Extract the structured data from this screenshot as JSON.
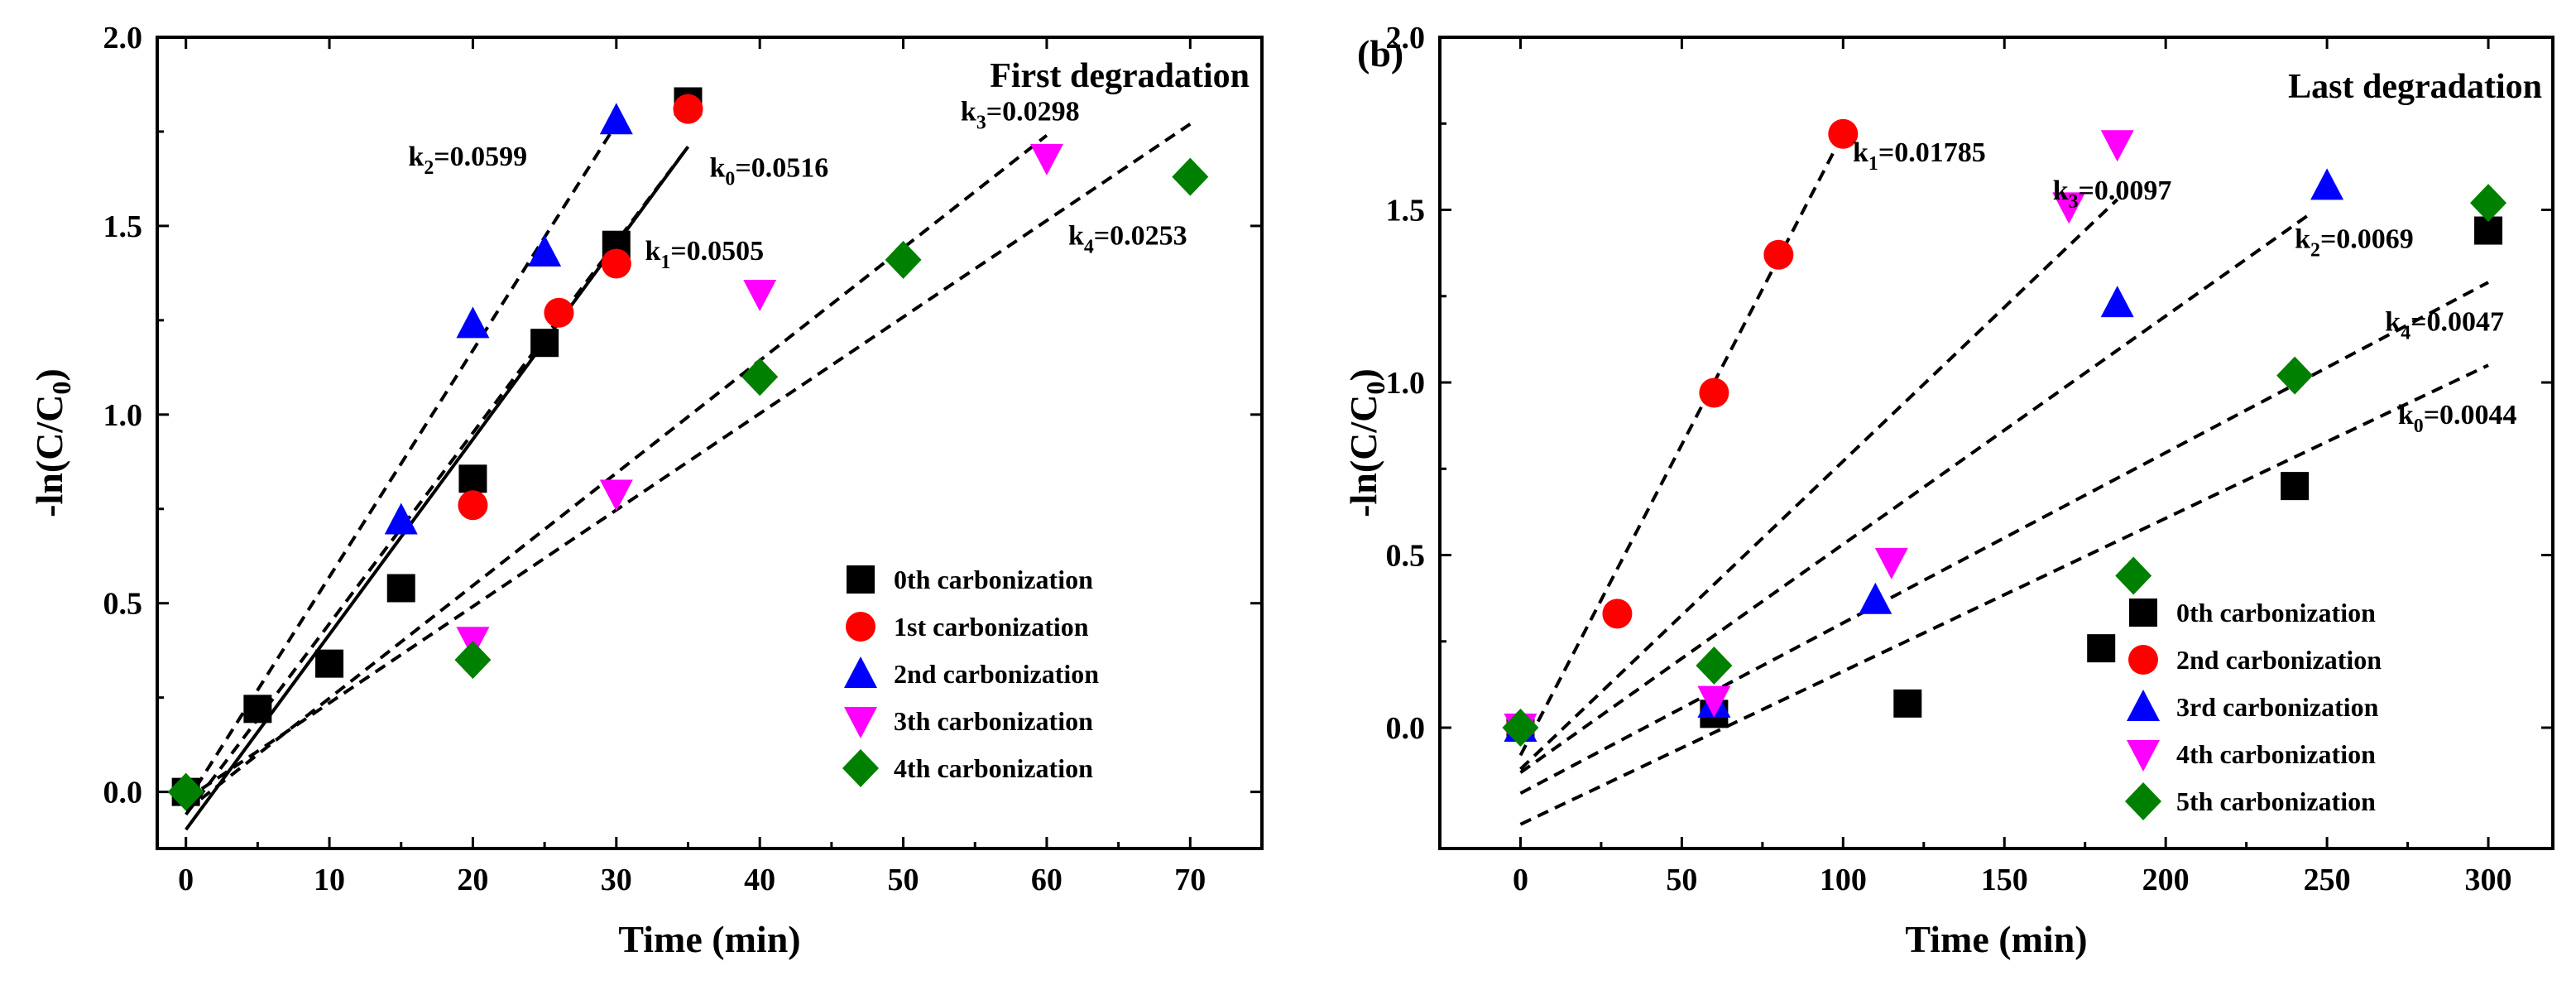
{
  "chart_data": [
    {
      "type": "scatter",
      "panel_label": "",
      "title": "First degradation",
      "xlabel": "Time (min)",
      "ylabel": "-ln(C/C0)",
      "ylabel_main": "-ln(C/C",
      "ylabel_sub": "0",
      "ylabel_tail": ")",
      "xlim": [
        -2,
        75
      ],
      "ylim": [
        -0.15,
        2.0
      ],
      "xticks": [
        0,
        10,
        20,
        30,
        40,
        50,
        60,
        70
      ],
      "xtick_labels": [
        "0",
        "10",
        "20",
        "30",
        "40",
        "50",
        "60",
        "70"
      ],
      "yticks": [
        0.0,
        0.5,
        1.0,
        1.5,
        2.0
      ],
      "ytick_labels": [
        "0.0",
        "0.5",
        "1.0",
        "1.5",
        "2.0"
      ],
      "legend_position": "bottom-right",
      "series": [
        {
          "name": "0th carbonization",
          "marker": "square",
          "color": "#000000",
          "x": [
            0,
            5,
            10,
            15,
            20,
            25,
            30,
            35
          ],
          "y": [
            0.0,
            0.22,
            0.34,
            0.54,
            0.83,
            1.19,
            1.45,
            1.83
          ]
        },
        {
          "name": "1st carbonization",
          "marker": "circle",
          "color": "#ff0000",
          "x": [
            20,
            26,
            30,
            35
          ],
          "y": [
            0.76,
            1.27,
            1.4,
            1.81
          ]
        },
        {
          "name": "2nd carbonization",
          "marker": "triangle-up",
          "color": "#0000ff",
          "x": [
            15,
            20,
            25,
            30
          ],
          "y": [
            0.72,
            1.24,
            1.43,
            1.78
          ]
        },
        {
          "name": "3th carbonization",
          "marker": "triangle-down",
          "color": "#ff00ff",
          "x": [
            20,
            30,
            40,
            60
          ],
          "y": [
            0.4,
            0.79,
            1.32,
            1.68
          ]
        },
        {
          "name": "4th carbonization",
          "marker": "diamond",
          "color": "#008000",
          "x": [
            0,
            20,
            40,
            50,
            70
          ],
          "y": [
            0.0,
            0.35,
            1.1,
            1.41,
            1.63
          ]
        }
      ],
      "fit_lines": [
        {
          "style": "dashed",
          "x": [
            0,
            30
          ],
          "y": [
            -0.03,
            1.77
          ]
        },
        {
          "style": "solid",
          "x": [
            0,
            35
          ],
          "y": [
            -0.1,
            1.71
          ]
        },
        {
          "style": "dashed",
          "x": [
            0,
            35
          ],
          "y": [
            -0.06,
            1.71
          ]
        },
        {
          "style": "dashed",
          "x": [
            0,
            60
          ],
          "y": [
            -0.05,
            1.74
          ]
        },
        {
          "style": "dashed",
          "x": [
            0,
            70
          ],
          "y": [
            -0.02,
            1.77
          ]
        }
      ],
      "rate_labels": [
        {
          "k": "k",
          "sub": "2",
          "val": "=0.0599",
          "x": 15.5,
          "y": 1.66
        },
        {
          "k": "k",
          "sub": "0",
          "val": "=0.0516",
          "x": 36.5,
          "y": 1.63
        },
        {
          "k": "k",
          "sub": "1",
          "val": "=0.0505",
          "x": 32,
          "y": 1.41
        },
        {
          "k": "k",
          "sub": "3",
          "val": "=0.0298",
          "x": 54,
          "y": 1.78
        },
        {
          "k": "k",
          "sub": "4",
          "val": "=0.0253",
          "x": 61.5,
          "y": 1.45
        }
      ]
    },
    {
      "type": "scatter",
      "panel_label": "(b)",
      "title": "Last degradation",
      "xlabel": "Time (min)",
      "ylabel": "-ln(C/C0)",
      "ylabel_main": "-ln(C/C",
      "ylabel_sub": "0",
      "ylabel_tail": ")",
      "xlim": [
        -25,
        320
      ],
      "ylim": [
        -0.35,
        2.0
      ],
      "xticks": [
        0,
        50,
        100,
        150,
        200,
        250,
        300
      ],
      "xtick_labels": [
        "0",
        "50",
        "100",
        "150",
        "200",
        "250",
        "300"
      ],
      "yticks": [
        0.0,
        0.5,
        1.0,
        1.5,
        2.0
      ],
      "ytick_labels": [
        "0.0",
        "0.5",
        "1.0",
        "1.5",
        "2.0"
      ],
      "legend_position": "bottom-right",
      "series": [
        {
          "name": "0th carbonization",
          "marker": "square",
          "color": "#000000",
          "x": [
            0,
            60,
            120,
            180,
            240,
            300
          ],
          "y": [
            0.0,
            0.04,
            0.07,
            0.23,
            0.7,
            1.44
          ]
        },
        {
          "name": "2nd carbonization",
          "marker": "circle",
          "color": "#ff0000",
          "x": [
            0,
            30,
            60,
            80,
            100
          ],
          "y": [
            0.0,
            0.33,
            0.97,
            1.37,
            1.72
          ]
        },
        {
          "name": "3rd carbonization",
          "marker": "triangle-up",
          "color": "#0000ff",
          "x": [
            0,
            60,
            110,
            185,
            250
          ],
          "y": [
            0.0,
            0.07,
            0.37,
            1.23,
            1.57
          ]
        },
        {
          "name": "4th carbonization",
          "marker": "triangle-down",
          "color": "#ff00ff",
          "x": [
            0,
            60,
            115,
            170,
            185
          ],
          "y": [
            0.0,
            0.08,
            0.48,
            1.51,
            1.69
          ]
        },
        {
          "name": "5th carbonization",
          "marker": "diamond",
          "color": "#008000",
          "x": [
            0,
            60,
            190,
            240,
            300
          ],
          "y": [
            0.0,
            0.18,
            0.44,
            1.02,
            1.52
          ]
        }
      ],
      "fit_lines": [
        {
          "style": "dashed",
          "x": [
            0,
            100
          ],
          "y": [
            -0.08,
            1.72
          ]
        },
        {
          "style": "dashed",
          "x": [
            0,
            185
          ],
          "y": [
            -0.12,
            1.53
          ]
        },
        {
          "style": "dashed",
          "x": [
            0,
            245
          ],
          "y": [
            -0.13,
            1.49
          ]
        },
        {
          "style": "dashed",
          "x": [
            0,
            300
          ],
          "y": [
            -0.19,
            1.29
          ]
        },
        {
          "style": "dashed",
          "x": [
            0,
            300
          ],
          "y": [
            -0.28,
            1.05
          ]
        }
      ],
      "rate_labels": [
        {
          "k": "k",
          "sub": "1",
          "val": "=0.01785",
          "x": 103,
          "y": 1.64
        },
        {
          "k": "k",
          "sub": "3",
          "val": "=0.0097",
          "x": 165,
          "y": 1.53
        },
        {
          "k": "k",
          "sub": "2",
          "val": "=0.0069",
          "x": 240,
          "y": 1.39
        },
        {
          "k": "k",
          "sub": "4",
          "val": "=0.0047",
          "x": 268,
          "y": 1.15
        },
        {
          "k": "k",
          "sub": "0",
          "val": "=0.0044",
          "x": 272,
          "y": 0.88
        }
      ]
    }
  ]
}
